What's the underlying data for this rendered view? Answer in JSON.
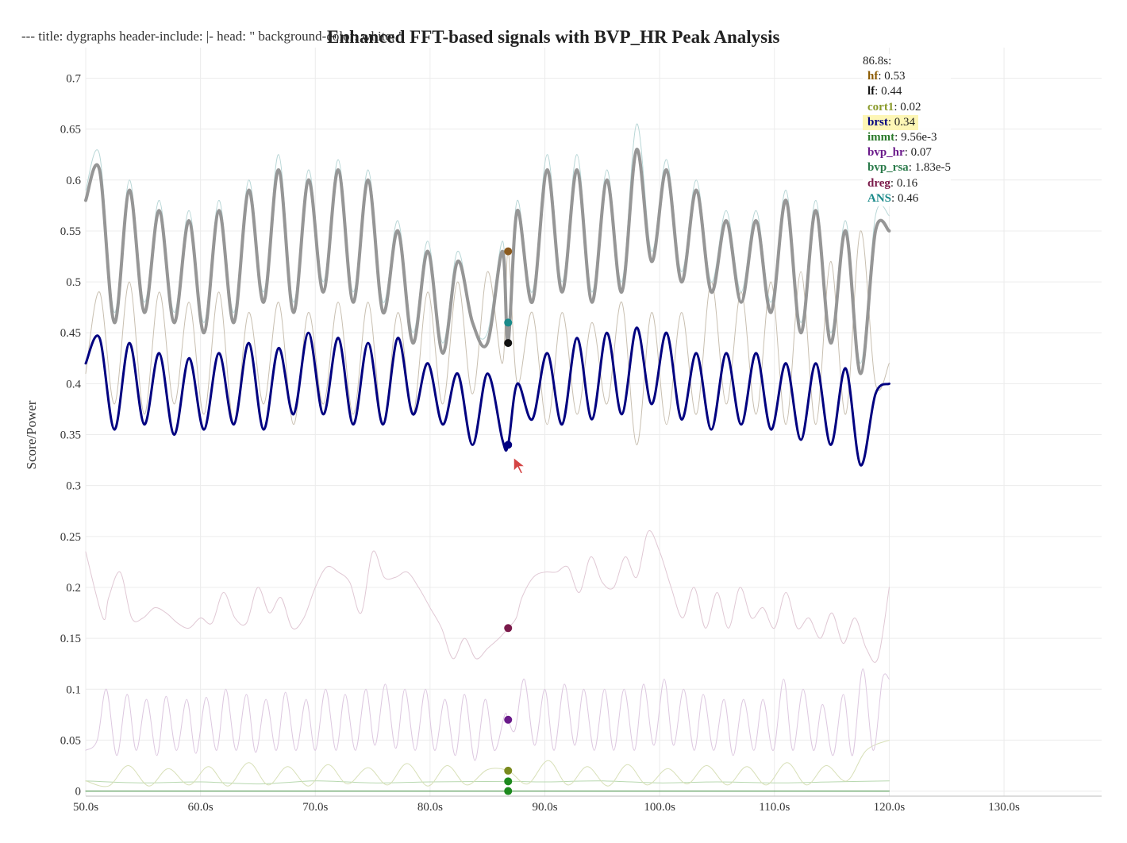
{
  "header_text": "--- title: dygraphs header-include: |- head: \" background-color: white; \"",
  "chart_data": {
    "type": "line",
    "title": "Enhanced FFT-based signals with BVP_HR Peak Analysis",
    "xlabel": "",
    "ylabel": "Score/Power",
    "xlim": [
      50,
      138.5
    ],
    "ylim": [
      -0.005,
      0.73
    ],
    "x_ticks": [
      50,
      60,
      70,
      80,
      90,
      100,
      110,
      120,
      130
    ],
    "x_tick_labels": [
      "50.0s",
      "60.0s",
      "70.0s",
      "80.0s",
      "90.0s",
      "100.0s",
      "110.0s",
      "120.0s",
      "130.0s"
    ],
    "y_ticks": [
      0,
      0.05,
      0.1,
      0.15,
      0.2,
      0.25,
      0.3,
      0.35,
      0.4,
      0.45,
      0.5,
      0.55,
      0.6,
      0.65,
      0.7
    ],
    "y_tick_labels": [
      "0",
      "0.05",
      "0.1",
      "0.15",
      "0.2",
      "0.25",
      "0.3",
      "0.35",
      "0.4",
      "0.45",
      "0.5",
      "0.55",
      "0.6",
      "0.65",
      "0.7"
    ],
    "grid": true,
    "highlight_x": 86.8,
    "highlight_label": "86.8s:",
    "highlight_series": "brst",
    "series": [
      {
        "name": "hf",
        "legend_value": "0.53",
        "color": "#c8bfb0",
        "legend_color": "#8b5a00",
        "point_color": "#8b5a1e",
        "width": 1,
        "value_at_cursor": 0.53,
        "x": [
          50,
          51.2,
          52.5,
          53.8,
          55.1,
          56.4,
          57.7,
          59,
          60.3,
          61.6,
          62.9,
          64.2,
          65.5,
          66.8,
          68.1,
          69.4,
          70.7,
          72,
          73.3,
          74.6,
          75.9,
          77.2,
          78.5,
          79.8,
          81.1,
          82.4,
          83.7,
          85,
          86.3,
          86.8,
          87.6,
          88.9,
          90.2,
          91.5,
          92.8,
          94.1,
          95.4,
          96.7,
          98,
          99.3,
          100.6,
          101.9,
          103.2,
          104.5,
          105.8,
          107.1,
          108.4,
          109.7,
          111,
          112.3,
          113.6,
          114.9,
          116.2,
          117.5,
          118.8,
          120
        ],
        "y": [
          0.41,
          0.49,
          0.38,
          0.5,
          0.37,
          0.49,
          0.38,
          0.48,
          0.37,
          0.49,
          0.36,
          0.47,
          0.38,
          0.48,
          0.36,
          0.47,
          0.38,
          0.48,
          0.37,
          0.48,
          0.36,
          0.47,
          0.37,
          0.49,
          0.38,
          0.5,
          0.39,
          0.51,
          0.42,
          0.53,
          0.4,
          0.47,
          0.36,
          0.47,
          0.37,
          0.46,
          0.38,
          0.48,
          0.34,
          0.47,
          0.36,
          0.47,
          0.37,
          0.5,
          0.38,
          0.49,
          0.37,
          0.5,
          0.36,
          0.51,
          0.36,
          0.52,
          0.37,
          0.55,
          0.4,
          0.42
        ]
      },
      {
        "name": "lf",
        "legend_value": "0.44",
        "color": "#969696",
        "legend_color": "#111111",
        "point_color": "#111111",
        "width": 4,
        "value_at_cursor": 0.44,
        "x": [
          50,
          51.2,
          52.5,
          53.8,
          55.1,
          56.4,
          57.7,
          59,
          60.3,
          61.6,
          62.9,
          64.2,
          65.5,
          66.8,
          68.1,
          69.4,
          70.7,
          72,
          73.3,
          74.6,
          75.9,
          77.2,
          78.5,
          79.8,
          81.1,
          82.4,
          83.7,
          85,
          86.3,
          86.8,
          87.6,
          88.9,
          90.2,
          91.5,
          92.8,
          94.1,
          95.4,
          96.7,
          98,
          99.3,
          100.6,
          101.9,
          103.2,
          104.5,
          105.8,
          107.1,
          108.4,
          109.7,
          111,
          112.3,
          113.6,
          114.9,
          116.2,
          117.5,
          118.8,
          120
        ],
        "y": [
          0.58,
          0.61,
          0.46,
          0.59,
          0.47,
          0.57,
          0.46,
          0.56,
          0.45,
          0.57,
          0.46,
          0.59,
          0.48,
          0.61,
          0.47,
          0.6,
          0.49,
          0.61,
          0.48,
          0.6,
          0.47,
          0.55,
          0.44,
          0.53,
          0.43,
          0.52,
          0.46,
          0.44,
          0.53,
          0.44,
          0.57,
          0.48,
          0.61,
          0.49,
          0.61,
          0.48,
          0.6,
          0.49,
          0.63,
          0.52,
          0.61,
          0.5,
          0.59,
          0.49,
          0.56,
          0.48,
          0.56,
          0.47,
          0.58,
          0.45,
          0.57,
          0.44,
          0.55,
          0.41,
          0.55,
          0.55
        ]
      },
      {
        "name": "cort1",
        "legend_value": "0.02",
        "color": "#d8e0b8",
        "legend_color": "#8a9a2a",
        "point_color": "#7a8a1e",
        "width": 1,
        "value_at_cursor": 0.02,
        "x": [
          50,
          52,
          53.7,
          55.5,
          57.2,
          59,
          60.7,
          62.4,
          64.2,
          65.9,
          67.6,
          69.4,
          71.1,
          72.8,
          74.6,
          76.3,
          78,
          79.8,
          81.5,
          83.2,
          85,
          86.8,
          88.5,
          90.3,
          92,
          93.7,
          95.5,
          97.2,
          98.9,
          100.7,
          102.4,
          104.1,
          105.9,
          107.6,
          109.3,
          111.1,
          112.8,
          114.5,
          116.3,
          118,
          120
        ],
        "y": [
          0.01,
          0.005,
          0.025,
          0.005,
          0.022,
          0.006,
          0.024,
          0.005,
          0.028,
          0.006,
          0.024,
          0.005,
          0.026,
          0.007,
          0.023,
          0.006,
          0.027,
          0.005,
          0.025,
          0.006,
          0.021,
          0.02,
          0.007,
          0.03,
          0.006,
          0.024,
          0.005,
          0.026,
          0.006,
          0.022,
          0.007,
          0.025,
          0.006,
          0.024,
          0.006,
          0.028,
          0.006,
          0.025,
          0.01,
          0.04,
          0.05
        ]
      },
      {
        "name": "brst",
        "legend_value": "0.34",
        "color": "#000080",
        "legend_color": "#000080",
        "point_color": "#000080",
        "width": 3,
        "value_at_cursor": 0.34,
        "x": [
          50,
          51.2,
          52.5,
          53.8,
          55.1,
          56.4,
          57.7,
          59,
          60.3,
          61.6,
          62.9,
          64.2,
          65.5,
          66.8,
          68.1,
          69.4,
          70.7,
          72,
          73.3,
          74.6,
          75.9,
          77.2,
          78.5,
          79.8,
          81.1,
          82.4,
          83.7,
          85,
          86.3,
          86.8,
          87.6,
          88.9,
          90.2,
          91.5,
          92.8,
          94.1,
          95.4,
          96.7,
          98,
          99.3,
          100.6,
          101.9,
          103.2,
          104.5,
          105.8,
          107.1,
          108.4,
          109.7,
          111,
          112.3,
          113.6,
          114.9,
          116.2,
          117.5,
          118.8,
          120
        ],
        "y": [
          0.42,
          0.445,
          0.355,
          0.44,
          0.36,
          0.43,
          0.35,
          0.425,
          0.355,
          0.43,
          0.36,
          0.44,
          0.355,
          0.435,
          0.37,
          0.45,
          0.37,
          0.445,
          0.36,
          0.44,
          0.36,
          0.445,
          0.37,
          0.42,
          0.36,
          0.41,
          0.34,
          0.41,
          0.345,
          0.34,
          0.4,
          0.365,
          0.43,
          0.36,
          0.445,
          0.365,
          0.45,
          0.37,
          0.455,
          0.38,
          0.45,
          0.365,
          0.43,
          0.355,
          0.43,
          0.36,
          0.43,
          0.355,
          0.42,
          0.345,
          0.42,
          0.34,
          0.415,
          0.32,
          0.39,
          0.4
        ]
      },
      {
        "name": "immt",
        "legend_value": "9.56e-3",
        "color": "#b8d8b0",
        "legend_color": "#2a7a2a",
        "point_color": "#1e8a1e",
        "width": 1,
        "value_at_cursor": 0.00956,
        "x": [
          50,
          55,
          60,
          65,
          70,
          75,
          80,
          86.8,
          90,
          95,
          100,
          105,
          110,
          115,
          120
        ],
        "y": [
          0.01,
          0.008,
          0.009,
          0.007,
          0.01,
          0.008,
          0.009,
          0.00956,
          0.009,
          0.01,
          0.008,
          0.009,
          0.008,
          0.009,
          0.01
        ]
      },
      {
        "name": "bvp_hr",
        "legend_value": "0.07",
        "color": "#ddc8e0",
        "legend_color": "#6a1a8a",
        "point_color": "#6a1a8a",
        "width": 1,
        "value_at_cursor": 0.07,
        "x": [
          50,
          51,
          51.8,
          52.7,
          53.6,
          54.4,
          55.3,
          56.2,
          57,
          57.9,
          58.8,
          59.6,
          60.5,
          61.4,
          62.2,
          63.1,
          64,
          64.8,
          65.7,
          66.6,
          67.4,
          68.3,
          69.2,
          70,
          70.9,
          71.8,
          72.6,
          73.5,
          74.4,
          75.2,
          76.1,
          77,
          77.8,
          78.7,
          79.6,
          80.4,
          81.3,
          82.2,
          83,
          83.9,
          84.8,
          85.6,
          86.5,
          86.8,
          87.4,
          88.2,
          89.1,
          90,
          90.8,
          91.7,
          92.6,
          93.4,
          94.3,
          95.2,
          96,
          96.9,
          97.8,
          98.6,
          99.5,
          100.4,
          101.2,
          102.1,
          103,
          103.8,
          104.7,
          105.6,
          106.4,
          107.3,
          108.2,
          109,
          109.9,
          110.8,
          111.6,
          112.5,
          113.4,
          114.2,
          115.1,
          116,
          116.8,
          117.7,
          118.6,
          119.4,
          120
        ],
        "y": [
          0.04,
          0.05,
          0.1,
          0.035,
          0.095,
          0.04,
          0.09,
          0.035,
          0.093,
          0.04,
          0.09,
          0.037,
          0.092,
          0.04,
          0.1,
          0.04,
          0.095,
          0.038,
          0.09,
          0.04,
          0.097,
          0.04,
          0.09,
          0.04,
          0.1,
          0.04,
          0.095,
          0.04,
          0.1,
          0.045,
          0.105,
          0.042,
          0.1,
          0.04,
          0.1,
          0.04,
          0.09,
          0.035,
          0.095,
          0.03,
          0.09,
          0.04,
          0.075,
          0.07,
          0.06,
          0.11,
          0.045,
          0.1,
          0.04,
          0.105,
          0.045,
          0.1,
          0.04,
          0.1,
          0.04,
          0.1,
          0.04,
          0.105,
          0.045,
          0.11,
          0.045,
          0.1,
          0.04,
          0.095,
          0.04,
          0.09,
          0.035,
          0.09,
          0.04,
          0.09,
          0.04,
          0.11,
          0.04,
          0.1,
          0.04,
          0.085,
          0.035,
          0.095,
          0.035,
          0.12,
          0.04,
          0.11,
          0.11
        ]
      },
      {
        "name": "bvp_rsa",
        "legend_value": "1.83e-5",
        "color": "#3a8a3a",
        "legend_color": "#2a7a4a",
        "point_color": "#1e8a1e",
        "width": 1,
        "value_at_cursor": 1.83e-05,
        "x": [
          50,
          120
        ],
        "y": [
          0.0,
          0.0
        ]
      },
      {
        "name": "dreg",
        "legend_value": "0.16",
        "color": "#e0c8d4",
        "legend_color": "#7a1a4a",
        "point_color": "#7a1a4a",
        "width": 1,
        "value_at_cursor": 0.16,
        "x": [
          50,
          51.5,
          52,
          53,
          54,
          55,
          56,
          57,
          58,
          59,
          60,
          61,
          62,
          63,
          64,
          65,
          66,
          67,
          68,
          69,
          70,
          71,
          72,
          73,
          74,
          75,
          76,
          77,
          78,
          79,
          80,
          81,
          82,
          83,
          84,
          85,
          86,
          86.8,
          87.5,
          88,
          89,
          90,
          91,
          92,
          93,
          94,
          95,
          96,
          97,
          98,
          99,
          100,
          101,
          102,
          103,
          104,
          105,
          106,
          107,
          108,
          109,
          110,
          111,
          112,
          113,
          114,
          115,
          116,
          117,
          118,
          119,
          120
        ],
        "y": [
          0.235,
          0.17,
          0.19,
          0.215,
          0.17,
          0.17,
          0.18,
          0.175,
          0.165,
          0.16,
          0.17,
          0.165,
          0.195,
          0.17,
          0.165,
          0.2,
          0.175,
          0.19,
          0.16,
          0.17,
          0.2,
          0.22,
          0.215,
          0.205,
          0.175,
          0.235,
          0.21,
          0.21,
          0.215,
          0.2,
          0.18,
          0.16,
          0.13,
          0.15,
          0.13,
          0.14,
          0.15,
          0.16,
          0.17,
          0.19,
          0.21,
          0.215,
          0.215,
          0.22,
          0.195,
          0.23,
          0.205,
          0.2,
          0.23,
          0.21,
          0.255,
          0.235,
          0.2,
          0.17,
          0.2,
          0.16,
          0.195,
          0.16,
          0.2,
          0.17,
          0.18,
          0.16,
          0.195,
          0.16,
          0.17,
          0.15,
          0.175,
          0.145,
          0.17,
          0.14,
          0.13,
          0.2
        ]
      },
      {
        "name": "ANS",
        "legend_value": "0.46",
        "color": "#b8d6d6",
        "legend_color": "#1a8a8a",
        "point_color": "#1a8a8a",
        "width": 1,
        "value_at_cursor": 0.46,
        "x": [
          50,
          51.2,
          52.5,
          53.8,
          55.1,
          56.4,
          57.7,
          59,
          60.3,
          61.6,
          62.9,
          64.2,
          65.5,
          66.8,
          68.1,
          69.4,
          70.7,
          72,
          73.3,
          74.6,
          75.9,
          77.2,
          78.5,
          79.8,
          81.1,
          82.4,
          83.7,
          85,
          86.3,
          86.8,
          87.6,
          88.9,
          90.2,
          91.5,
          92.8,
          94.1,
          95.4,
          96.7,
          98,
          99.3,
          100.6,
          101.9,
          103.2,
          104.5,
          105.8,
          107.1,
          108.4,
          109.7,
          111,
          112.3,
          113.6,
          114.9,
          116.2,
          117.5,
          118.8,
          120
        ],
        "y": [
          0.59,
          0.625,
          0.47,
          0.6,
          0.48,
          0.58,
          0.47,
          0.57,
          0.46,
          0.58,
          0.47,
          0.6,
          0.49,
          0.625,
          0.48,
          0.61,
          0.5,
          0.62,
          0.49,
          0.61,
          0.48,
          0.56,
          0.45,
          0.54,
          0.44,
          0.53,
          0.46,
          0.45,
          0.54,
          0.46,
          0.58,
          0.49,
          0.625,
          0.5,
          0.625,
          0.49,
          0.61,
          0.5,
          0.655,
          0.53,
          0.62,
          0.51,
          0.6,
          0.5,
          0.57,
          0.49,
          0.57,
          0.48,
          0.59,
          0.46,
          0.58,
          0.45,
          0.56,
          0.42,
          0.565,
          0.565
        ]
      }
    ]
  }
}
